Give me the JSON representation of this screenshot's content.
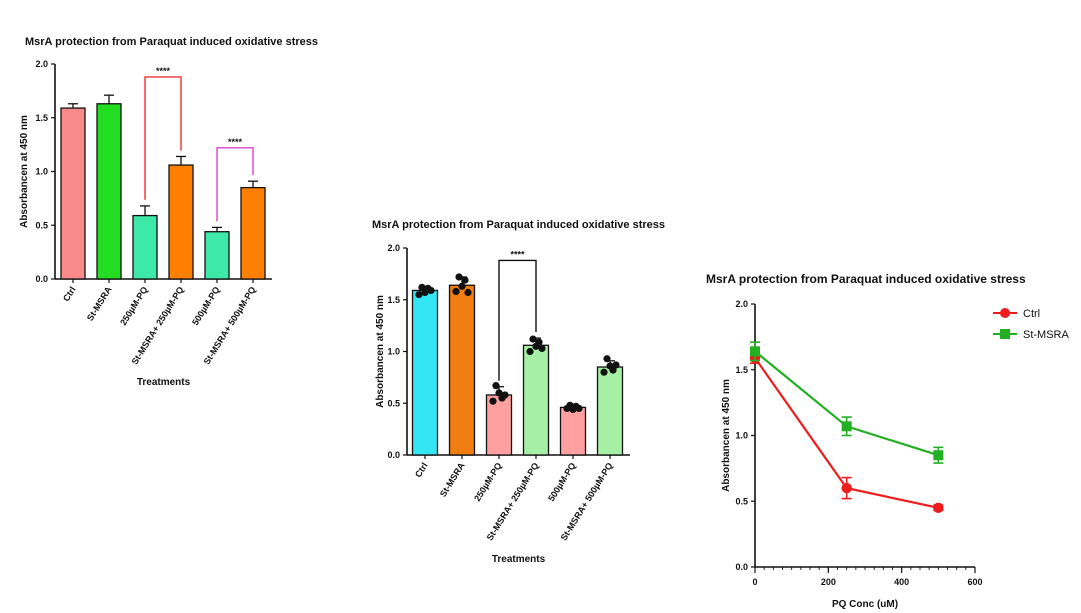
{
  "chart_data": [
    {
      "type": "bar",
      "title": "MsrA protection from Paraquat induced oxidative stress",
      "xlabel": "Treatments",
      "ylabel": "Absorbancen at 450 nm",
      "ylim": [
        0,
        2.0
      ],
      "yticks": [
        "0.0",
        "0.5",
        "1.0",
        "1.5",
        "2.0"
      ],
      "grid": false,
      "categories": [
        "Ctrl",
        "St-MSRA",
        "250µM-PQ",
        "St-MSRA+ 250µM-PQ",
        "500µM-PQ",
        "St-MSRA+ 500µM-PQ"
      ],
      "values": [
        1.59,
        1.63,
        0.59,
        1.06,
        0.44,
        0.85
      ],
      "errors": [
        0.04,
        0.08,
        0.09,
        0.08,
        0.04,
        0.06
      ],
      "colors": [
        "#f98a8a",
        "#22dd22",
        "#3de8a8",
        "#ff7f00",
        "#3de8a8",
        "#ff7f00"
      ],
      "annotations": [
        {
          "text": "****",
          "from": 2,
          "to": 3,
          "y": 1.88,
          "color": "#f03030"
        },
        {
          "text": "****",
          "from": 4,
          "to": 5,
          "y": 1.22,
          "color": "#e040c8"
        }
      ]
    },
    {
      "type": "bar",
      "title": "MsrA protection from Paraquat induced oxidative stress",
      "xlabel": "Treatments",
      "ylabel": "Absorbancen at 450 nm",
      "ylim": [
        0,
        2.0
      ],
      "yticks": [
        "0.0",
        "0.5",
        "1.0",
        "1.5",
        "2.0"
      ],
      "grid": false,
      "categories": [
        "Ctrl",
        "St-MSRA",
        "250µM-PQ",
        "St-MSRA+ 250µM-PQ",
        "500µM-PQ",
        "St-MSRA+ 500µM-PQ"
      ],
      "values": [
        1.59,
        1.64,
        0.58,
        1.06,
        0.46,
        0.85
      ],
      "errors": [
        0.04,
        0.08,
        0.08,
        0.07,
        0.03,
        0.06
      ],
      "colors": [
        "#33e5f5",
        "#f07d10",
        "#ffa0a0",
        "#a5f0a5",
        "#ffa0a0",
        "#a5f0a5"
      ],
      "points": [
        [
          1.55,
          1.62,
          1.57,
          1.61,
          1.59
        ],
        [
          1.58,
          1.72,
          1.63,
          1.69,
          1.57
        ],
        [
          0.52,
          0.67,
          0.6,
          0.55,
          0.58
        ],
        [
          1.0,
          1.12,
          1.05,
          1.09,
          1.03
        ],
        [
          0.45,
          0.48,
          0.44,
          0.47,
          0.45
        ],
        [
          0.8,
          0.93,
          0.86,
          0.82,
          0.87
        ]
      ],
      "annotations": [
        {
          "text": "****",
          "from": 2,
          "to": 3,
          "y": 1.88,
          "color": "#111111"
        }
      ]
    },
    {
      "type": "line",
      "title": "MsrA protection from Paraquat induced oxidative stress",
      "xlabel": "PQ Conc (uM)",
      "ylabel": "Absorbancen at 450 nm",
      "xlim": [
        0,
        600
      ],
      "ylim": [
        0,
        2.0
      ],
      "xticks": [
        "0",
        "200",
        "400",
        "600"
      ],
      "yticks": [
        "0.0",
        "0.5",
        "1.0",
        "1.5",
        "2.0"
      ],
      "grid": false,
      "legend_position": "top-right",
      "x": [
        0,
        250,
        500
      ],
      "series": [
        {
          "name": "Ctrl",
          "color": "#ee1c1c",
          "marker": "circle",
          "values": [
            1.59,
            0.6,
            0.45
          ],
          "errors": [
            0.04,
            0.08,
            0.02
          ]
        },
        {
          "name": "St-MSRA",
          "color": "#22b022",
          "marker": "square",
          "values": [
            1.64,
            1.07,
            0.85
          ],
          "errors": [
            0.07,
            0.07,
            0.06
          ]
        }
      ]
    }
  ]
}
